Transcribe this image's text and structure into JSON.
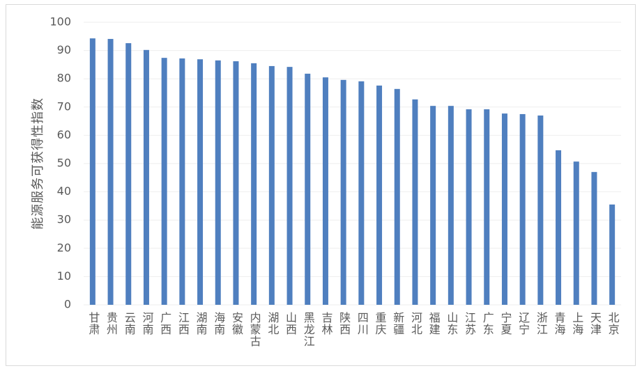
{
  "chart_data": {
    "type": "bar",
    "y_label": "能源服务可获得性指数",
    "categories": [
      "甘肃",
      "贵州",
      "云南",
      "河南",
      "广西",
      "江西",
      "湖南",
      "海南",
      "安徽",
      "内蒙古",
      "湖北",
      "山西",
      "黑龙江",
      "吉林",
      "陕西",
      "四川",
      "重庆",
      "新疆",
      "河北",
      "福建",
      "山东",
      "江苏",
      "广东",
      "宁夏",
      "辽宁",
      "浙江",
      "青海",
      "上海",
      "天津",
      "北京"
    ],
    "values": [
      94.3,
      94.1,
      92.6,
      90.2,
      87.4,
      87.2,
      86.9,
      86.5,
      86.2,
      85.5,
      84.5,
      84.2,
      81.8,
      80.5,
      79.6,
      79.1,
      77.6,
      76.4,
      72.7,
      70.4,
      70.4,
      69.2,
      69.2,
      67.7,
      67.5,
      67.0,
      54.7,
      50.7,
      47.0,
      35.5
    ],
    "color": "#4f7fbf",
    "ylim": [
      0,
      100
    ],
    "yticks": [
      0,
      10,
      20,
      30,
      40,
      50,
      60,
      70,
      80,
      90,
      100
    ],
    "grid": true
  }
}
